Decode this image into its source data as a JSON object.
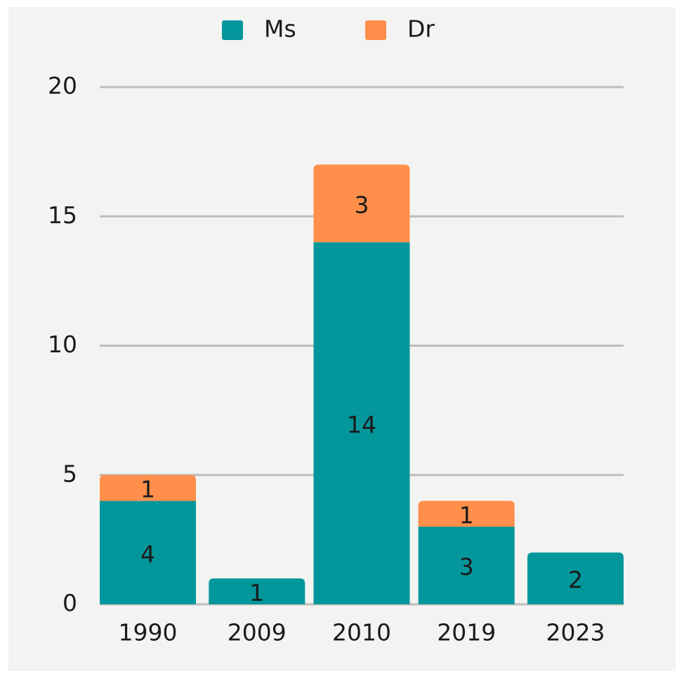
{
  "chart_data": {
    "type": "stacked_bar",
    "categories": [
      "1990",
      "2009",
      "2010",
      "2019",
      "2023"
    ],
    "series": [
      {
        "name": "Ms",
        "color": "#03979b",
        "values": [
          4,
          1,
          14,
          3,
          2
        ]
      },
      {
        "name": "Dr",
        "color": "#ff8f4a",
        "values": [
          1,
          null,
          3,
          1,
          null
        ]
      }
    ],
    "ylim": [
      0,
      20
    ],
    "yticks": [
      0,
      5,
      10,
      15,
      20
    ],
    "grid": true,
    "legend": "top"
  }
}
